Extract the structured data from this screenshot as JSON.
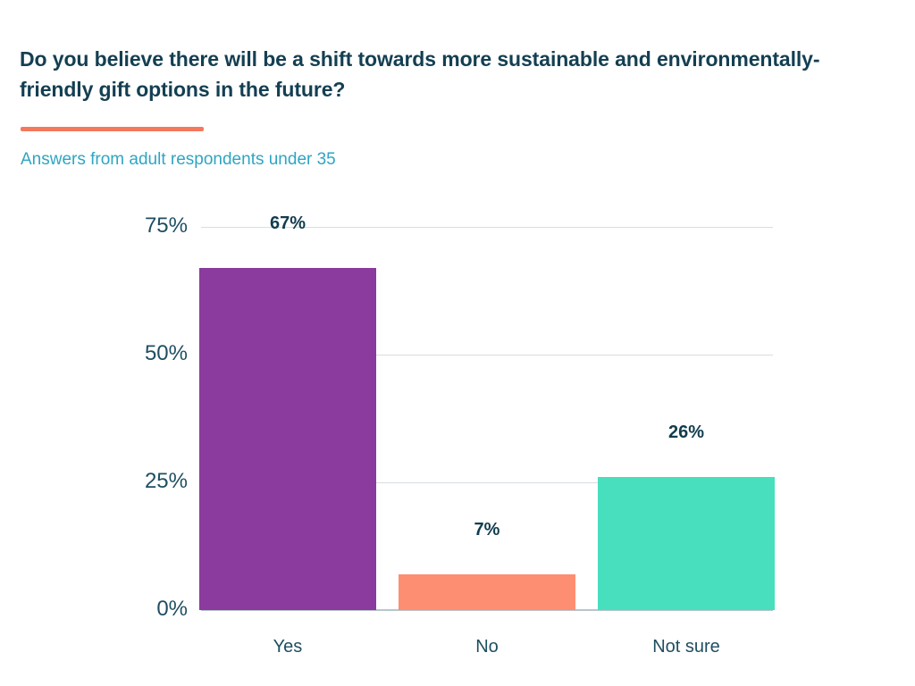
{
  "header": {
    "title_line1": "Do you believe there will be a shift towards more sustainable and environmentally-",
    "title_line2": "friendly gift options in the future?",
    "subtitle": "Answers from adult respondents under 35"
  },
  "colors": {
    "title_text": "#143f52",
    "subtitle_text": "#2fa5c2",
    "accent_bar": "#f4795c",
    "axis_text": "#1f4e61",
    "value_label_text": "#113c4f",
    "gridline": "#d8dde0",
    "baseline": "#b9c5cc"
  },
  "chart_data": {
    "type": "bar",
    "title": "Do you believe there will be a shift towards more sustainable and environmentally-friendly gift options in the future?",
    "subtitle": "Answers from adult respondents under 35",
    "categories": [
      "Yes",
      "No",
      "Not sure"
    ],
    "values": [
      67,
      7,
      26
    ],
    "value_labels": [
      "67%",
      "7%",
      "26%"
    ],
    "bar_colors": [
      "#8b3a9e",
      "#fd8e71",
      "#48dfbe"
    ],
    "xlabel": "",
    "ylabel": "",
    "ylim": [
      0,
      75
    ],
    "yticks": [
      0,
      25,
      50,
      75
    ],
    "ytick_labels": [
      "0%",
      "25%",
      "50%",
      "75%"
    ],
    "grid": true,
    "legend": false
  }
}
